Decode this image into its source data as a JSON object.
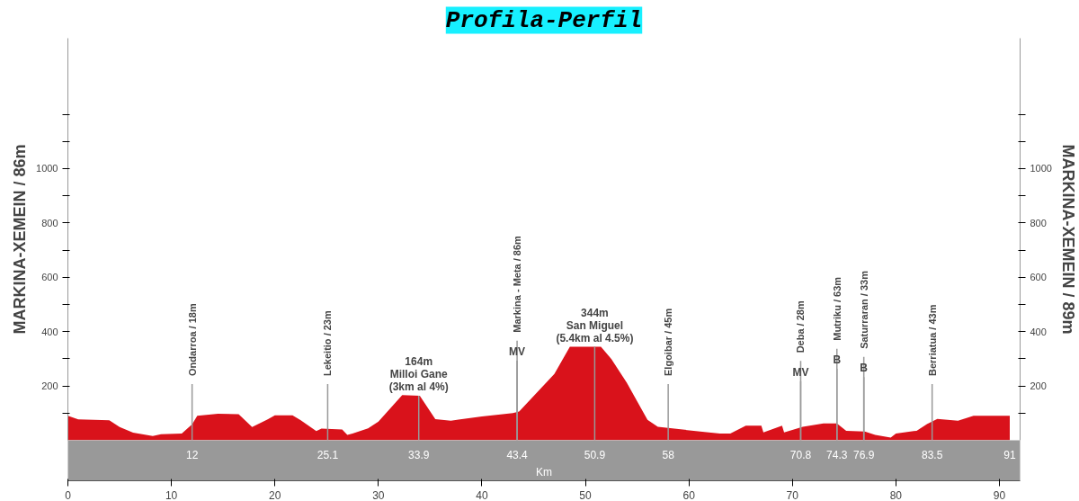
{
  "chart_data": {
    "type": "area",
    "title": "Profila-Perfil",
    "ylabel": "MARKINA-XEMEIN / 86m",
    "y2label": "MARKINA-XEMEIN / 89m",
    "x2label": "Km",
    "x": [
      0,
      1,
      4,
      5,
      6.3,
      8.2,
      9,
      11,
      12,
      12.5,
      14.5,
      16.5,
      17.8,
      19.3,
      20,
      21.7,
      22.5,
      24,
      24.5,
      26.5,
      27,
      27.5,
      29,
      30,
      32.3,
      34,
      35.5,
      37,
      40,
      43,
      43.6,
      47,
      48.5,
      51.5,
      52.5,
      54,
      56,
      57,
      59,
      61.5,
      63,
      64,
      65.5,
      67,
      67.2,
      69,
      69.2,
      71,
      73,
      74.3,
      75.2,
      77,
      78,
      79.5,
      80,
      82,
      83,
      84,
      86,
      87.5,
      90,
      91
    ],
    "values": [
      90,
      77,
      74,
      49,
      28,
      16,
      22,
      25,
      59,
      90,
      98,
      96,
      49,
      77,
      92,
      92,
      74,
      34,
      43,
      40,
      20,
      25,
      44,
      69,
      166,
      164,
      78,
      72,
      88,
      100,
      106,
      244,
      344,
      344,
      300,
      212,
      75,
      50,
      41,
      31,
      25,
      25,
      54,
      54,
      29,
      54,
      29,
      50,
      62,
      62,
      35,
      32,
      20,
      10,
      25,
      35,
      60,
      79,
      72,
      90,
      90,
      90
    ],
    "color": "#d9121b",
    "xlim": [
      0,
      92
    ],
    "xticks": [
      0,
      10,
      20,
      30,
      40,
      50,
      60,
      70,
      80,
      90
    ],
    "x2lim": [
      0,
      92
    ],
    "x2ticks": [
      12,
      25.1,
      33.9,
      43.4,
      50.9,
      58,
      70.8,
      74.3,
      76.9,
      83.5,
      91
    ],
    "ylim": [
      0,
      1480
    ],
    "yticks": [
      {
        "value": 100,
        "label": null
      },
      200,
      {
        "value": 300,
        "label": null
      },
      400,
      {
        "value": 500,
        "label": null
      },
      600,
      {
        "value": 700,
        "label": null
      },
      800,
      {
        "value": 900,
        "label": null
      },
      1000,
      {
        "value": 1100,
        "label": null
      },
      {
        "value": 1200,
        "label": null
      }
    ],
    "y2lim": [
      0,
      1480
    ],
    "y2ticks": [
      {
        "value": 100,
        "label": null
      },
      200,
      {
        "value": 300,
        "label": null
      },
      400,
      {
        "value": 500,
        "label": null
      },
      600,
      {
        "value": 700,
        "label": null
      },
      800,
      {
        "value": 900,
        "label": null
      },
      1000,
      {
        "value": 1100,
        "label": null
      },
      {
        "value": 1200,
        "label": null
      }
    ],
    "grid": false,
    "ref_lines": [
      {
        "axis": "x",
        "value": 12,
        "label": "Ondarroa / 18m"
      },
      {
        "axis": "x",
        "value": 25.1,
        "label": "Lekeitio / 23m"
      },
      {
        "axis": "x",
        "value": 43.4,
        "label": "Markina - Meta / 86m"
      },
      {
        "axis": "x",
        "value": 58,
        "label": "Elgoibar / 45m"
      },
      {
        "axis": "x",
        "value": 70.8,
        "label": "Deba / 28m"
      },
      {
        "axis": "x",
        "value": 74.3,
        "label": "Mutriku / 63m"
      },
      {
        "axis": "x",
        "value": 76.9,
        "label": "Saturraran / 33m"
      },
      {
        "axis": "x",
        "value": 83.5,
        "label": "Berriatua / 43m"
      }
    ],
    "annotations": [
      {
        "text": "164m\nMilloi Gane\n(3km al 4%)",
        "x": 33.9,
        "y": 164
      },
      {
        "text": "344m\nSan Miguel\n(5.4km al 4.5%)",
        "x": 50.9,
        "y": 344
      },
      {
        "text": "MV",
        "x": 43.4,
        "y": 293
      },
      {
        "text": "MV",
        "x": 70.8,
        "y": 218
      },
      {
        "text": "B",
        "x": 74.3,
        "y": 263
      },
      {
        "text": "B",
        "x": 76.9,
        "y": 233
      }
    ]
  }
}
